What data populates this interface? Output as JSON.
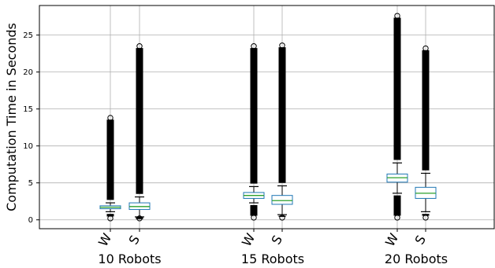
{
  "chart_data": {
    "type": "box",
    "ylabel": "Computation Time in Seconds",
    "ylim": [
      -1.2,
      29
    ],
    "yticks": [
      0,
      5,
      10,
      15,
      20,
      25
    ],
    "grid": true,
    "groups": [
      {
        "label": "10 Robots",
        "boxes": [
          {
            "label": "W",
            "whisker_low": 1.1,
            "q1": 1.5,
            "median": 1.7,
            "q3": 1.9,
            "whisker_high": 2.3,
            "outlier_low": 0.2,
            "outlier_high": 13.8
          },
          {
            "label": "S",
            "whisker_low": 0.4,
            "q1": 1.4,
            "median": 1.8,
            "q3": 2.3,
            "whisker_high": 3.1,
            "outlier_low": 0.2,
            "outlier_high": 23.5
          }
        ]
      },
      {
        "label": "15 Robots",
        "boxes": [
          {
            "label": "W",
            "whisker_low": 2.3,
            "q1": 2.9,
            "median": 3.3,
            "q3": 3.7,
            "whisker_high": 4.5,
            "outlier_low": 0.3,
            "outlier_high": 23.5
          },
          {
            "label": "S",
            "whisker_low": 0.7,
            "q1": 2.1,
            "median": 2.6,
            "q3": 3.3,
            "whisker_high": 4.6,
            "outlier_low": 0.3,
            "outlier_high": 23.6
          }
        ]
      },
      {
        "label": "20 Robots",
        "boxes": [
          {
            "label": "W",
            "whisker_low": 3.6,
            "q1": 5.1,
            "median": 5.7,
            "q3": 6.2,
            "whisker_high": 7.7,
            "outlier_low": 0.3,
            "outlier_high": 27.6
          },
          {
            "label": "S",
            "whisker_low": 1.1,
            "q1": 2.9,
            "median": 3.6,
            "q3": 4.4,
            "whisker_high": 6.3,
            "outlier_low": 0.3,
            "outlier_high": 23.2
          }
        ]
      }
    ],
    "colors": {
      "box": "#1f77b4",
      "median": "#2ca02c",
      "outlier": "#000000",
      "grid": "#b0b0b0",
      "axis": "#000000"
    }
  }
}
